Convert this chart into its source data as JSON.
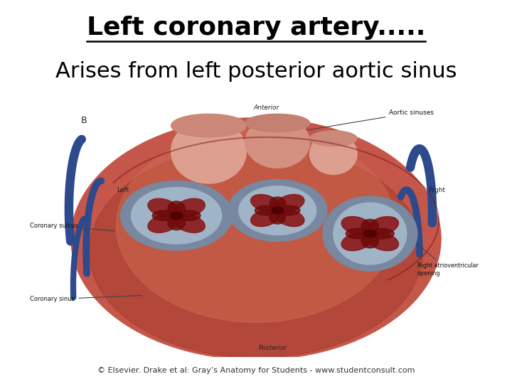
{
  "title": "Left coronary artery.....",
  "subtitle": "Arises from left posterior aortic sinus",
  "title_fontsize": 26,
  "subtitle_fontsize": 22,
  "title_color": "#000000",
  "subtitle_color": "#000000",
  "background_color": "#ffffff",
  "copyright_text": "© Elsevier. Drake et al: Gray’s Anatomy for Students - www.studentconsult.com",
  "copyright_fontsize": 8
}
